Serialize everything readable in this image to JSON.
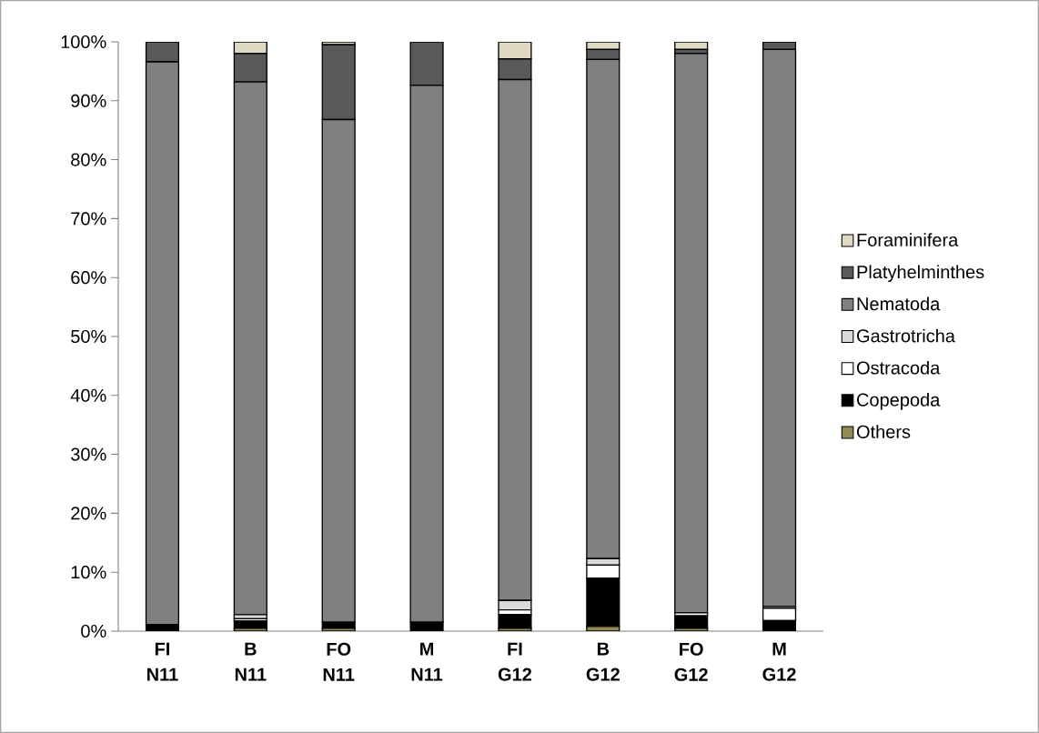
{
  "chart_data": {
    "type": "bar",
    "stacked": true,
    "legend": "right",
    "categories": [
      "FI N11",
      "B N11",
      "FO N11",
      "M N11",
      "FI G12",
      "B G12",
      "FO G12",
      "M G12"
    ],
    "ylim": [
      0,
      100
    ],
    "yticks": [
      {
        "value": 0,
        "label": "0%"
      },
      {
        "value": 10,
        "label": "10%"
      },
      {
        "value": 20,
        "label": "20%"
      },
      {
        "value": 30,
        "label": "30%"
      },
      {
        "value": 40,
        "label": "40%"
      },
      {
        "value": 50,
        "label": "50%"
      },
      {
        "value": 60,
        "label": "60%"
      },
      {
        "value": 70,
        "label": "70%"
      },
      {
        "value": 80,
        "label": "80%"
      },
      {
        "value": 90,
        "label": "90%"
      },
      {
        "value": 100,
        "label": "100%"
      }
    ],
    "series": [
      {
        "name": "Others",
        "color": "#938953",
        "values": [
          0,
          0.5,
          0.5,
          0,
          0.5,
          0.8,
          0.5,
          0
        ]
      },
      {
        "name": "Copepoda",
        "color": "#000000",
        "values": [
          1.1,
          1.2,
          1.0,
          1.5,
          2.3,
          8.2,
          2.1,
          1.8
        ]
      },
      {
        "name": "Ostracoda",
        "color": "#ffffff",
        "values": [
          0,
          0.4,
          0,
          0,
          0.8,
          2.2,
          0.5,
          2.1
        ]
      },
      {
        "name": "Gastrotricha",
        "color": "#d9d9d9",
        "values": [
          0,
          0.7,
          0,
          0,
          1.6,
          1.1,
          0,
          0.3
        ]
      },
      {
        "name": "Nematoda",
        "color": "#808080",
        "values": [
          95.5,
          90.4,
          85.3,
          91.1,
          88.4,
          84.7,
          94.9,
          94.5
        ]
      },
      {
        "name": "Platyhelminthes",
        "color": "#595959",
        "values": [
          3.4,
          4.8,
          12.7,
          7.4,
          3.5,
          1.7,
          0.7,
          1.3
        ]
      },
      {
        "name": "Foraminifera",
        "color": "#ddd9c3",
        "values": [
          0,
          2.0,
          0.5,
          0,
          2.9,
          1.3,
          1.3,
          0
        ]
      }
    ]
  }
}
